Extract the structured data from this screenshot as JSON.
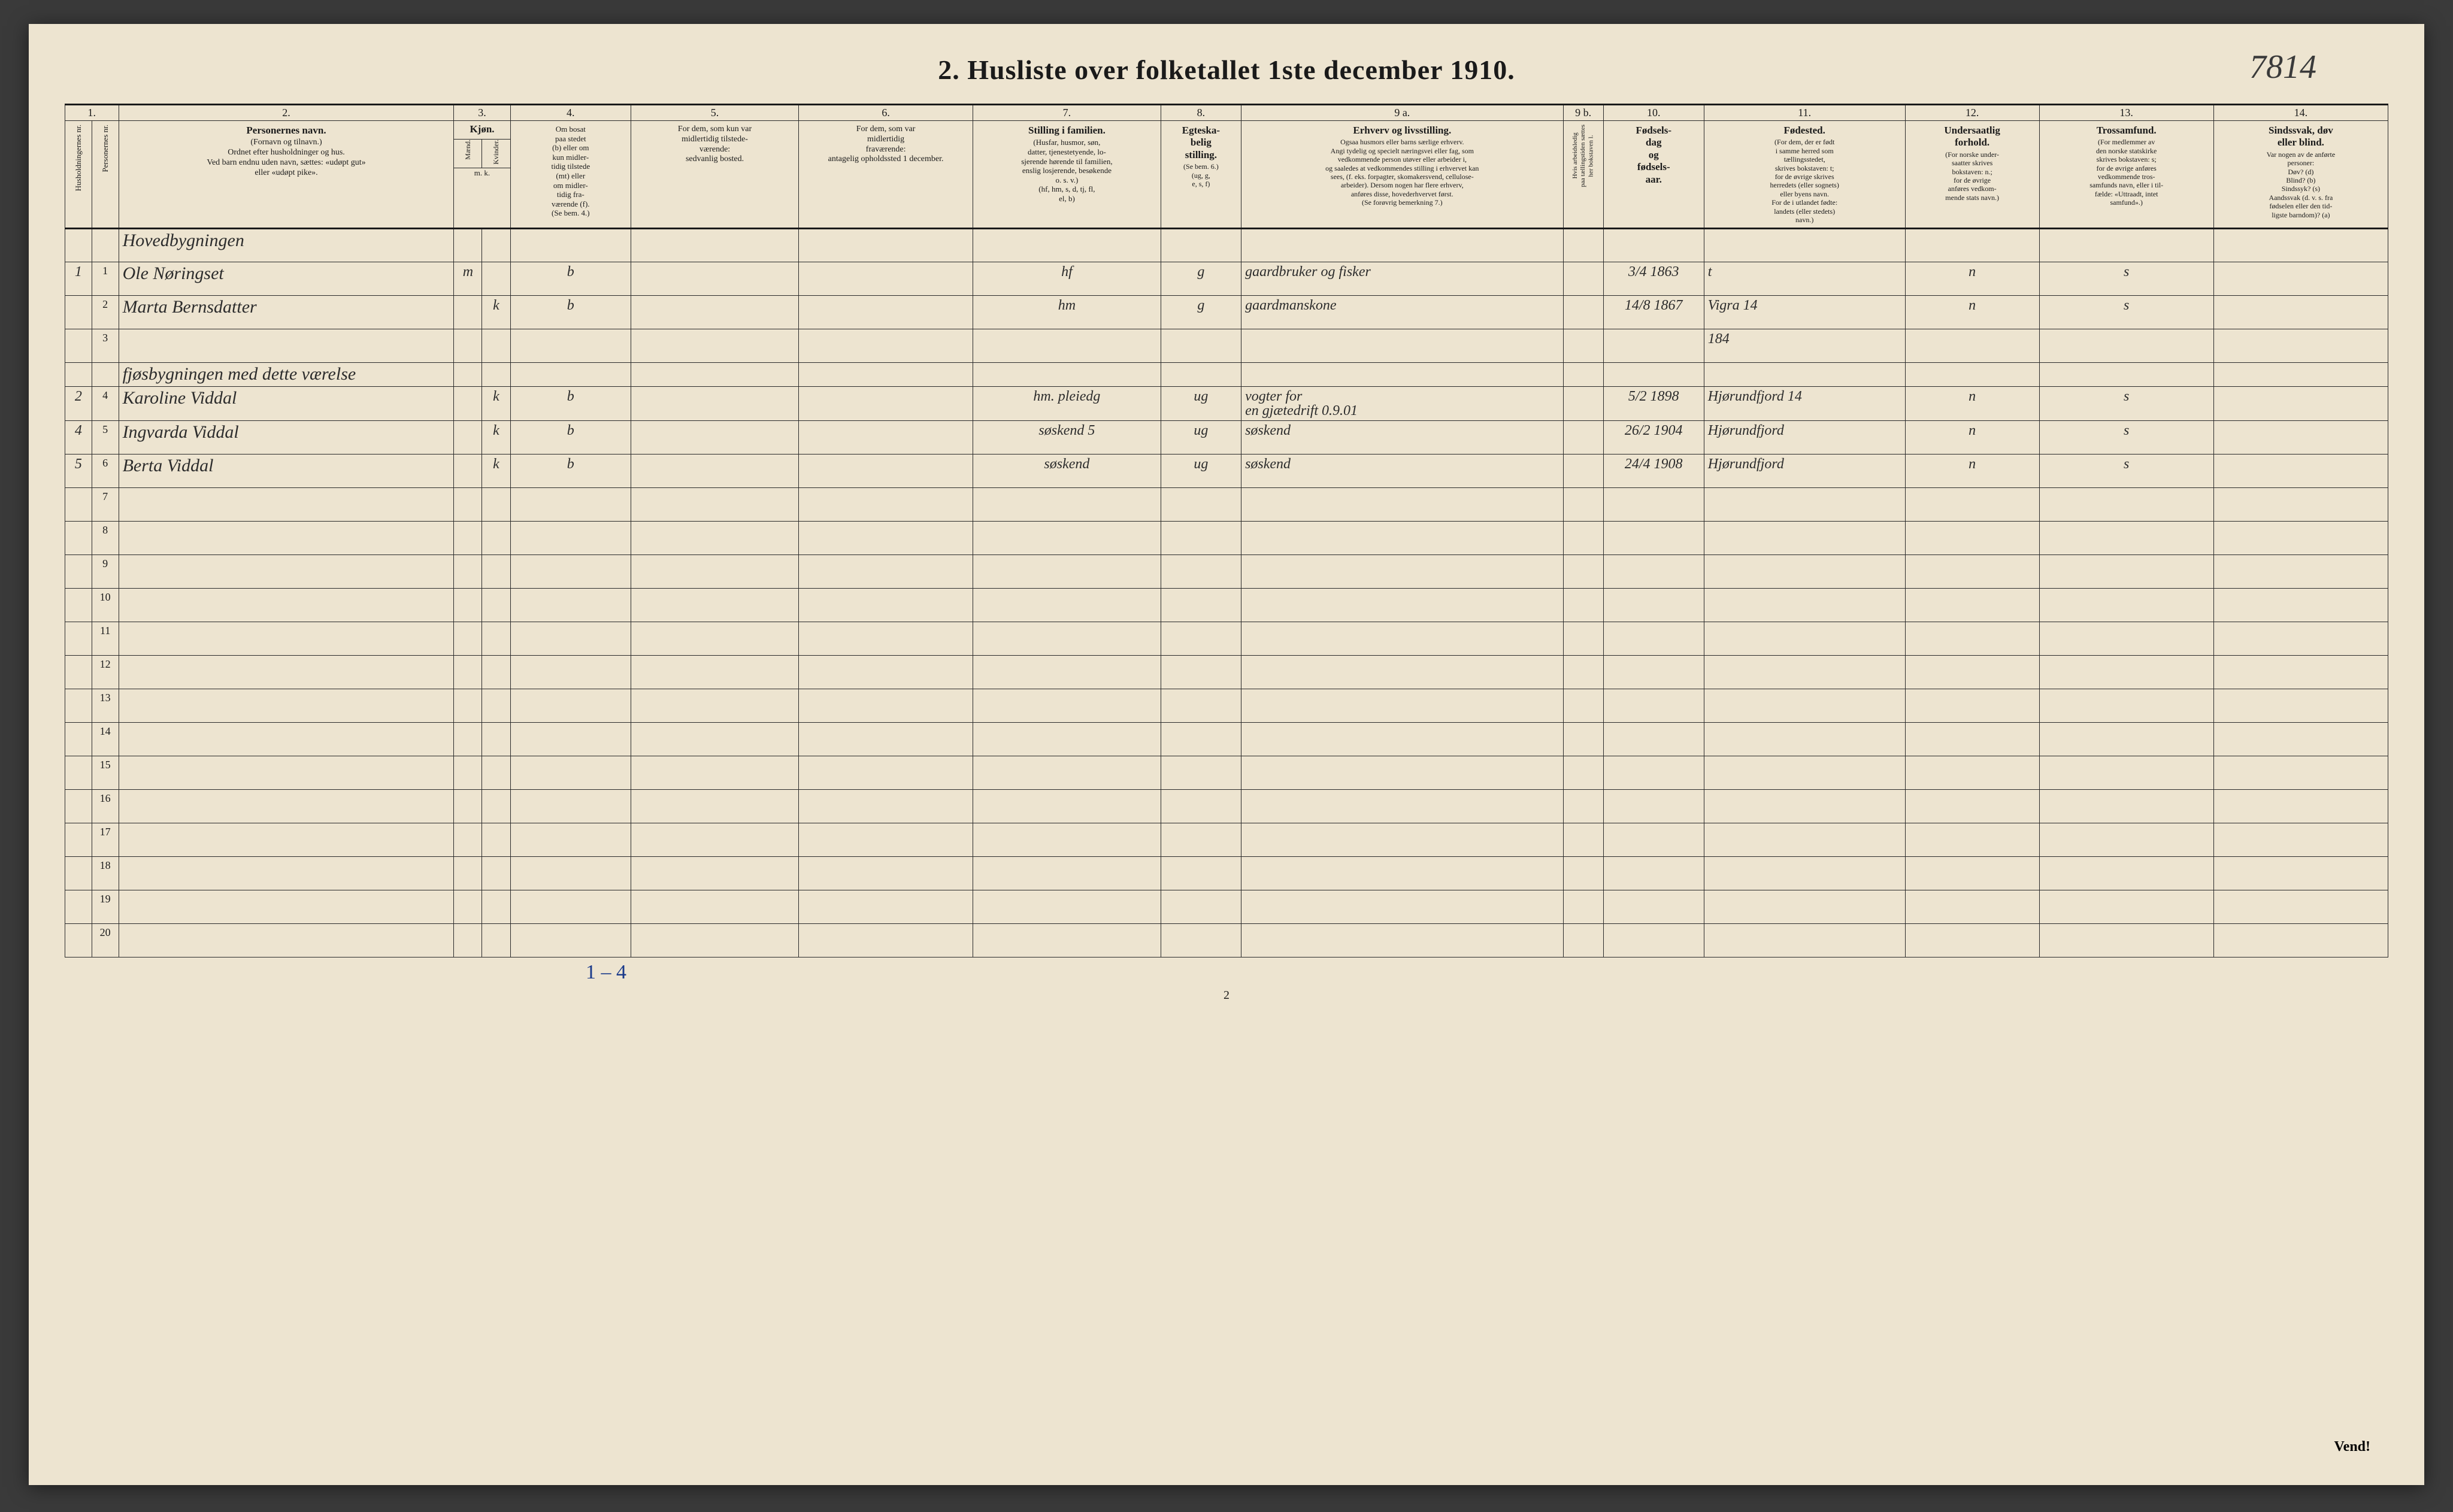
{
  "corner_note": "7814",
  "title": "2.  Husliste over folketallet 1ste december 1910.",
  "colnums": [
    "1.",
    "",
    "2.",
    "3.",
    "",
    "4.",
    "5.",
    "6.",
    "7.",
    "8.",
    "9 a.",
    "9 b.",
    "10.",
    "11.",
    "12.",
    "13.",
    "14."
  ],
  "headers": {
    "c1a": "Husholdningernes nr.",
    "c1b": "Personernes nr.",
    "c2_title": "Personernes navn.",
    "c2_sub": "(Fornavn og tilnavn.)\nOrdnet efter husholdninger og hus.\nVed barn endnu uden navn, sættes: «udøpt gut»\neller «udøpt pike».",
    "c3_title": "Kjøn.",
    "c3a": "Mænd.",
    "c3b": "Kvinder.",
    "c3_sub": "m.  k.",
    "c4_title": "Om bosat\npaa stedet\n(b) eller om\nkun midler-\ntidig tilstede\n(mt) eller\nom midler-\ntidig fra-\nværende (f).\n(Se bem. 4.)",
    "c5_title": "For dem, som kun var\nmidlertidig tilstede-\nværende:",
    "c5_sub": "sedvanlig bosted.",
    "c6_title": "For dem, som var\nmidlertidig\nfraværende:",
    "c6_sub": "antagelig opholdssted\n1 december.",
    "c7_title": "Stilling i familien.",
    "c7_sub": "(Husfar, husmor, søn,\ndatter, tjenestetyende, lo-\nsjerende hørende til familien,\nenslig losjerende, besøkende\no. s. v.)\n(hf, hm, s, d, tj, fl,\nel, b)",
    "c8_title": "Egteska-\nbelig\nstilling.",
    "c8_sub": "(Se bem. 6.)\n(ug, g,\ne, s, f)",
    "c9a_title": "Erhverv og livsstilling.",
    "c9a_sub": "Ogsaa husmors eller barns særlige erhverv.\nAngi tydelig og specielt næringsvei eller fag, som\nvedkommende person utøver eller arbeider i,\nog saaledes at vedkommendes stilling i erhvervet kan\nsees, (f. eks. forpagter, skomakersvend, cellulose-\narbeider). Dersom nogen har flere erhverv,\nanføres disse, hovederhvervet først.\n(Se forøvrig bemerkning 7.)",
    "c9b": "Hvis arbeidsledig\npaa tællingstiden sættes\nher bokstaven l.",
    "c10_title": "Fødsels-\ndag\nog\nfødsels-\naar.",
    "c11_title": "Fødested.",
    "c11_sub": "(For dem, der er født\ni samme herred som\ntællingsstedet,\nskrives bokstaven: t;\nfor de øvrige skrives\nherredets (eller sognets)\neller byens navn.\nFor de i utlandet fødte:\nlandets (eller stedets)\nnavn.)",
    "c12_title": "Undersaatlig\nforhold.",
    "c12_sub": "(For norske under-\nsaatter skrives\nbokstaven: n.;\nfor de øvrige\nanføres vedkom-\nmende stats navn.)",
    "c13_title": "Trossamfund.",
    "c13_sub": "(For medlemmer av\nden norske statskirke\nskrives bokstaven: s;\nfor de øvrige anføres\nvedkommende tros-\nsamfunds navn, eller i til-\nfælde: «Uttraadt, intet\nsamfund».)",
    "c14_title": "Sindssvak, døv\neller blind.",
    "c14_sub": "Var nogen av de anførte\npersoner:\nDøv?        (d)\nBlind?      (b)\nSindssyk?   (s)\nAandssvak (d. v. s. fra\nfødselen eller den tid-\nligste barndom)?  (a)"
  },
  "section1": "Hovedbygningen",
  "section2": "fjøsbygningen med dette værelse",
  "rows": [
    {
      "hh": "1",
      "pn": "1",
      "name": "Ole   Nøringset",
      "mk": "m",
      "res": "b",
      "fam": "hf",
      "mar": "g",
      "occ": "gaardbruker og fisker",
      "dob": "3/4 1863",
      "born": "t",
      "nat": "n",
      "rel": "s"
    },
    {
      "hh": "",
      "pn": "2",
      "name": "Marta   Bernsdatter",
      "mk": "k",
      "res": "b",
      "fam": "hm",
      "mar": "g",
      "occ": "gaardmanskone",
      "dob": "14/8 1867",
      "born": "Vigra  14",
      "nat": "n",
      "rel": "s"
    },
    {
      "hh": "",
      "pn": "3",
      "name": "",
      "mk": "",
      "res": "",
      "fam": "",
      "mar": "",
      "occ": "",
      "dob": "",
      "born": "184",
      "nat": "",
      "rel": ""
    },
    {
      "hh": "2",
      "pn": "4",
      "name": "Karoline   Viddal",
      "mk": "k",
      "res": "b",
      "fam": "hm. pleiedg",
      "mar": "ug",
      "occ": "vogter for\nen gjætedrift        0.9.01",
      "dob": "5/2 1898",
      "born": "Hjørundfjord 14",
      "nat": "n",
      "rel": "s"
    },
    {
      "hh": "4",
      "pn": "5",
      "name": "Ingvarda   Viddal",
      "mk": "k",
      "res": "b",
      "fam": "søskend   5",
      "mar": "ug",
      "occ": "søskend",
      "dob": "26/2 1904",
      "born": "Hjørundfjord",
      "nat": "n",
      "rel": "s"
    },
    {
      "hh": "5",
      "pn": "6",
      "name": "Berta    Viddal",
      "mk": "k",
      "res": "b",
      "fam": "søskend",
      "mar": "ug",
      "occ": "søskend",
      "dob": "24/4 1908",
      "born": "Hjørundfjord",
      "nat": "n",
      "rel": "s"
    }
  ],
  "empty_rownums": [
    "7",
    "8",
    "9",
    "10",
    "11",
    "12",
    "13",
    "14",
    "15",
    "16",
    "17",
    "18",
    "19",
    "20"
  ],
  "bottom_note": "1 – 4",
  "page_num": "2",
  "vend": "Vend!"
}
